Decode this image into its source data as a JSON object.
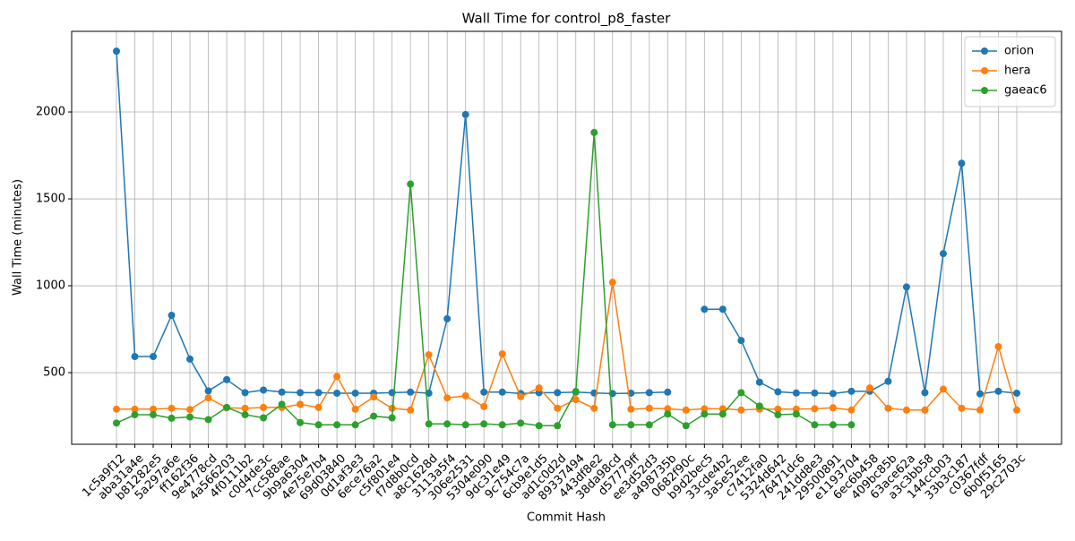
{
  "chart_data": {
    "type": "line",
    "title": "Wall Time for control_p8_faster",
    "x_label": "Commit Hash",
    "y_label": "Wall Time (minutes)",
    "categories": [
      "1c5a9f12",
      "aba31a4e",
      "b81282e5",
      "5a297a6e",
      "ff162f36",
      "9e4778cd",
      "4a566203",
      "4f0111b2",
      "c0d4de3c",
      "7cc588ae",
      "9b9a6304",
      "4e75e7b4",
      "69d03840",
      "0d1af3e3",
      "6ece76a2",
      "c5f801e4",
      "f7d8b0cd",
      "a8c1628d",
      "3113a5f4",
      "306e2531",
      "5304e090",
      "9dc31e49",
      "9c754c7a",
      "6cb9e1d5",
      "ad1c0d2d",
      "89337494",
      "443df8e2",
      "38da98cd",
      "d57779ff",
      "ee3d52d3",
      "a498735b",
      "0682f90c",
      "b9d2bec5",
      "33cde4b2",
      "3a5e52ee",
      "c7412fa0",
      "5324d642",
      "76471dc6",
      "241dd8e3",
      "29500891",
      "e1193704",
      "6ec6b458",
      "409bc85b",
      "63ace62a",
      "a3c3bb58",
      "144ccb03",
      "33b3c187",
      "c0367fdf",
      "6b0f5165",
      "29c2703c"
    ],
    "series": [
      {
        "name": "orion",
        "color": "#1f77b4",
        "values": [
          2350,
          593,
          593,
          830,
          578,
          395,
          460,
          385,
          400,
          388,
          385,
          385,
          382,
          382,
          382,
          385,
          388,
          382,
          810,
          1985,
          388,
          388,
          380,
          385,
          385,
          388,
          383,
          380,
          382,
          385,
          388,
          null,
          865,
          865,
          685,
          445,
          390,
          383,
          383,
          380,
          393,
          393,
          450,
          993,
          385,
          1185,
          1705,
          378,
          393,
          382
        ]
      },
      {
        "name": "hera",
        "color": "#ff7f0e",
        "values": [
          290,
          290,
          290,
          295,
          288,
          355,
          298,
          295,
          300,
          300,
          318,
          300,
          478,
          290,
          360,
          295,
          285,
          603,
          355,
          367,
          305,
          608,
          362,
          412,
          295,
          345,
          295,
          1020,
          290,
          295,
          292,
          285,
          292,
          292,
          285,
          290,
          290,
          290,
          292,
          298,
          285,
          412,
          295,
          285,
          285,
          405,
          295,
          285,
          650,
          285
        ]
      },
      {
        "name": "gaeac6",
        "color": "#2ca02c",
        "values": [
          210,
          258,
          258,
          238,
          245,
          230,
          300,
          258,
          240,
          318,
          213,
          200,
          200,
          200,
          250,
          240,
          1585,
          205,
          205,
          200,
          205,
          200,
          210,
          195,
          195,
          392,
          1882,
          200,
          200,
          200,
          262,
          195,
          262,
          262,
          385,
          308,
          258,
          262,
          200,
          200,
          200,
          null,
          null,
          null,
          null,
          null,
          null,
          null,
          null,
          null
        ]
      }
    ],
    "ylim": [
      88,
      2464
    ],
    "yticks": [
      500,
      1000,
      1500,
      2000
    ],
    "grid": true,
    "legend": "upper right"
  }
}
